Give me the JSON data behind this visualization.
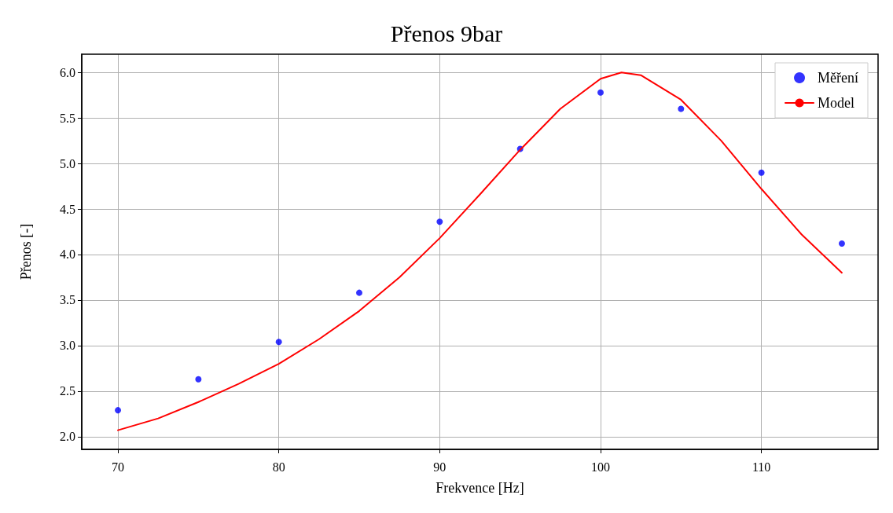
{
  "chart_data": {
    "type": "scatter",
    "title": "Přenos 9bar",
    "xlabel": "Frekvence [Hz]",
    "ylabel": "Přenos [-]",
    "series": [
      {
        "name": "Měření",
        "color": "#0000ff",
        "marker": "circle",
        "x": [
          70,
          75,
          80,
          85,
          90,
          95,
          100,
          105,
          110,
          115
        ],
        "values": [
          2.29,
          2.63,
          3.04,
          3.58,
          4.36,
          5.16,
          5.78,
          5.6,
          4.9,
          4.12
        ]
      },
      {
        "name": "Model",
        "type": "line",
        "color": "#ff0000",
        "marker": "none",
        "line_style": "solid",
        "x": [
          70,
          72.5,
          75,
          77.5,
          80,
          82.5,
          85,
          87.5,
          90,
          92.5,
          95,
          97.5,
          100,
          101.3,
          102.5,
          105,
          107.5,
          110,
          112.5,
          115
        ],
        "values": [
          2.07,
          2.2,
          2.38,
          2.58,
          2.8,
          3.07,
          3.38,
          3.75,
          4.18,
          4.66,
          5.15,
          5.6,
          5.93,
          6.0,
          5.97,
          5.7,
          5.25,
          4.72,
          4.22,
          3.8
        ]
      }
    ],
    "xlim": [
      67.75,
      117.25
    ],
    "xticks": [
      70,
      80,
      90,
      100,
      110
    ],
    "ylim": [
      1.86,
      6.2
    ],
    "yticks": [
      {
        "value": 2,
        "label": "2.0"
      },
      2.5,
      {
        "value": 3,
        "label": "3.0"
      },
      3.5,
      {
        "value": 4,
        "label": "4.0"
      },
      4.5,
      {
        "value": 5,
        "label": "5.0"
      },
      5.5,
      {
        "value": 6,
        "label": "6.0"
      }
    ],
    "grid": true,
    "legend": "top right"
  }
}
